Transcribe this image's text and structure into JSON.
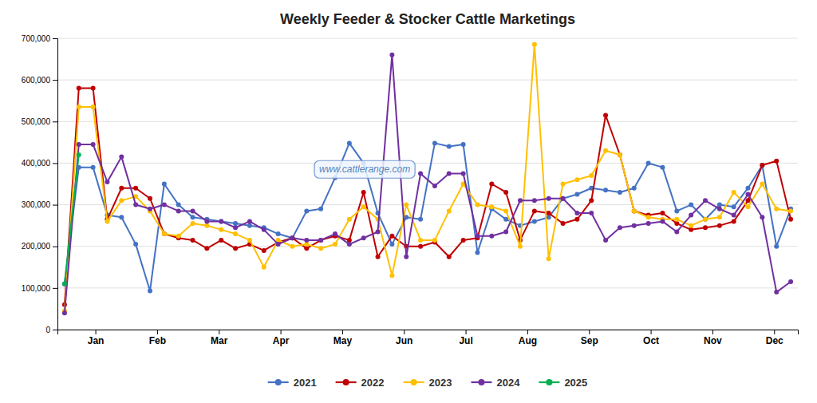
{
  "chart_data": {
    "type": "line",
    "title": "Weekly Feeder & Stocker Cattle Marketings",
    "annotations": [
      "www.cattlerange.com"
    ],
    "x": [
      0,
      1,
      2,
      3,
      4,
      5,
      6,
      7,
      8,
      9,
      10,
      11,
      12,
      13,
      14,
      15,
      16,
      17,
      18,
      19,
      20,
      21,
      22,
      23,
      24,
      25,
      26,
      27,
      28,
      29,
      30,
      31,
      32,
      33,
      34,
      35,
      36,
      37,
      38,
      39,
      40,
      41,
      42,
      43,
      44,
      45,
      46,
      47,
      48,
      49,
      50,
      51
    ],
    "xlim": [
      -0.5,
      51.5
    ],
    "xticks": [
      {
        "value": 2.1666666666666665,
        "label": "Jan"
      },
      {
        "value": 6.5,
        "label": "Feb"
      },
      {
        "value": 10.833333333333332,
        "label": "Mar"
      },
      {
        "value": 15.166666666666666,
        "label": "Apr"
      },
      {
        "value": 19.5,
        "label": "May"
      },
      {
        "value": 23.833333333333332,
        "label": "Jun"
      },
      {
        "value": 28.166666666666664,
        "label": "Jul"
      },
      {
        "value": 32.5,
        "label": "Aug"
      },
      {
        "value": 36.83333333333333,
        "label": "Sep"
      },
      {
        "value": 41.166666666666664,
        "label": "Oct"
      },
      {
        "value": 45.5,
        "label": "Nov"
      },
      {
        "value": 49.83333333333333,
        "label": "Dec"
      }
    ],
    "ylim": [
      0,
      700000
    ],
    "yticks": [
      0,
      {
        "value": 100000,
        "label": "100,000"
      },
      {
        "value": 200000,
        "label": "200,000"
      },
      {
        "value": 300000,
        "label": "300,000"
      },
      {
        "value": 400000,
        "label": "400,000"
      },
      {
        "value": 500000,
        "label": "500,000"
      },
      {
        "value": 600000,
        "label": "600,000"
      },
      {
        "value": 700000,
        "label": "700,000"
      }
    ],
    "grid": true,
    "legend": "bottom",
    "marker": "circle",
    "series": [
      {
        "name": "2021",
        "color": "#4472C4",
        "values": [
          110000,
          390000,
          390000,
          275000,
          270000,
          205000,
          93000,
          350000,
          300000,
          270000,
          265000,
          260000,
          255000,
          250000,
          245000,
          230000,
          220000,
          285000,
          290000,
          365000,
          448000,
          400000,
          280000,
          205000,
          270000,
          265000,
          448000,
          440000,
          445000,
          185000,
          290000,
          265000,
          250000,
          260000,
          270000,
          315000,
          325000,
          340000,
          335000,
          330000,
          340000,
          400000,
          390000,
          285000,
          300000,
          265000,
          300000,
          295000,
          340000,
          395000,
          200000,
          290000
        ]
      },
      {
        "name": "2022",
        "color": "#C00000",
        "values": [
          60000,
          580000,
          580000,
          265000,
          340000,
          340000,
          315000,
          230000,
          220000,
          215000,
          195000,
          215000,
          195000,
          205000,
          190000,
          210000,
          220000,
          195000,
          215000,
          225000,
          215000,
          330000,
          175000,
          225000,
          200000,
          200000,
          210000,
          175000,
          215000,
          220000,
          350000,
          330000,
          215000,
          285000,
          280000,
          255000,
          265000,
          310000,
          515000,
          420000,
          285000,
          275000,
          280000,
          255000,
          240000,
          245000,
          250000,
          260000,
          310000,
          395000,
          405000,
          265000
        ]
      },
      {
        "name": "2023",
        "color": "#FFC000",
        "values": [
          45000,
          535000,
          535000,
          260000,
          310000,
          320000,
          285000,
          230000,
          225000,
          255000,
          250000,
          240000,
          230000,
          215000,
          150000,
          215000,
          200000,
          205000,
          195000,
          205000,
          265000,
          295000,
          265000,
          130000,
          300000,
          215000,
          215000,
          285000,
          350000,
          300000,
          295000,
          285000,
          200000,
          685000,
          170000,
          350000,
          360000,
          370000,
          430000,
          420000,
          285000,
          270000,
          265000,
          265000,
          250000,
          265000,
          270000,
          330000,
          295000,
          350000,
          290000,
          285000
        ]
      },
      {
        "name": "2024",
        "color": "#7030A0",
        "values": [
          40000,
          445000,
          445000,
          355000,
          415000,
          300000,
          290000,
          300000,
          285000,
          285000,
          260000,
          260000,
          245000,
          260000,
          240000,
          205000,
          220000,
          215000,
          215000,
          230000,
          205000,
          220000,
          235000,
          660000,
          175000,
          375000,
          345000,
          375000,
          375000,
          225000,
          225000,
          235000,
          310000,
          310000,
          315000,
          315000,
          280000,
          280000,
          215000,
          245000,
          250000,
          255000,
          260000,
          235000,
          275000,
          310000,
          290000,
          275000,
          325000,
          270000,
          90000,
          115000
        ]
      },
      {
        "name": "2025",
        "color": "#00B050",
        "values": [
          110000,
          420000,
          null,
          null,
          null,
          null,
          null,
          null,
          null,
          null,
          null,
          null,
          null,
          null,
          null,
          null,
          null,
          null,
          null,
          null,
          null,
          null,
          null,
          null,
          null,
          null,
          null,
          null,
          null,
          null,
          null,
          null,
          null,
          null,
          null,
          null,
          null,
          null,
          null,
          null,
          null,
          null,
          null,
          null,
          null,
          null,
          null,
          null,
          null,
          null,
          null,
          null
        ]
      }
    ]
  }
}
